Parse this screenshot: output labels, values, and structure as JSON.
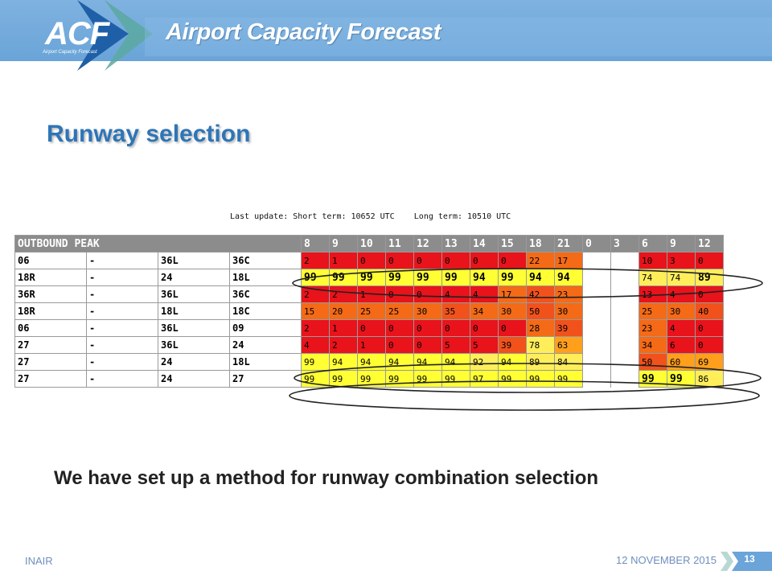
{
  "header": {
    "logo_text": "ACF",
    "logo_subtitle": "Airport Capacity Forecast",
    "title": "Airport Capacity Forecast"
  },
  "slide": {
    "title": "Runway selection",
    "last_update": "Last update: Short term: 10652 UTC    Long term: 10510 UTC",
    "statement": "We have set up a method for runway combination selection"
  },
  "table": {
    "header_label": "OUTBOUND PEAK",
    "hours": [
      "8",
      "9",
      "10",
      "11",
      "12",
      "13",
      "14",
      "15",
      "18",
      "21",
      "0",
      "3",
      "6",
      "9",
      "12"
    ],
    "rows": [
      {
        "c1": "06",
        "c2": "-",
        "c3": "36L",
        "c4": "36C",
        "values": [
          "2",
          "1",
          "0",
          "0",
          "0",
          "0",
          "0",
          "0",
          "22",
          "17",
          "",
          "",
          "10",
          "3",
          "0"
        ]
      },
      {
        "c1": "18R",
        "c2": "-",
        "c3": "24",
        "c4": "18L",
        "values": [
          "99",
          "99",
          "99",
          "99",
          "99",
          "99",
          "94",
          "99",
          "94",
          "94",
          "",
          "",
          "74",
          "74",
          "89"
        ]
      },
      {
        "c1": "36R",
        "c2": "-",
        "c3": "36L",
        "c4": "36C",
        "values": [
          "2",
          "2",
          "1",
          "0",
          "0",
          "4",
          "4",
          "17",
          "42",
          "23",
          "",
          "",
          "13",
          "4",
          "0"
        ]
      },
      {
        "c1": "18R",
        "c2": "-",
        "c3": "18L",
        "c4": "18C",
        "values": [
          "15",
          "20",
          "25",
          "25",
          "30",
          "35",
          "34",
          "30",
          "50",
          "30",
          "",
          "",
          "25",
          "30",
          "40"
        ]
      },
      {
        "c1": "06",
        "c2": "-",
        "c3": "36L",
        "c4": "09",
        "values": [
          "2",
          "1",
          "0",
          "0",
          "0",
          "0",
          "0",
          "0",
          "28",
          "39",
          "",
          "",
          "23",
          "4",
          "0"
        ]
      },
      {
        "c1": "27",
        "c2": "-",
        "c3": "36L",
        "c4": "24",
        "values": [
          "4",
          "2",
          "1",
          "0",
          "0",
          "5",
          "5",
          "39",
          "78",
          "63",
          "",
          "",
          "34",
          "6",
          "0"
        ]
      },
      {
        "c1": "27",
        "c2": "-",
        "c3": "24",
        "c4": "18L",
        "values": [
          "99",
          "94",
          "94",
          "94",
          "94",
          "94",
          "92",
          "94",
          "89",
          "84",
          "",
          "",
          "50",
          "60",
          "69"
        ]
      },
      {
        "c1": "27",
        "c2": "-",
        "c3": "24",
        "c4": "27",
        "values": [
          "99",
          "99",
          "99",
          "99",
          "99",
          "99",
          "97",
          "99",
          "99",
          "99",
          "",
          "",
          "99",
          "99",
          "86"
        ]
      }
    ]
  },
  "footer": {
    "left": "INAIR",
    "date": "12 NOVEMBER 2015",
    "page": "13"
  },
  "colors": {
    "header_blue": "#6aa4d8",
    "title_blue": "#2e75b6",
    "cell_red": "#e8131b",
    "cell_orange": "#f46a17",
    "cell_dark_orange": "#f1521b",
    "cell_amber": "#ff9f1c",
    "cell_yellow": "#ffff33",
    "cell_light_yellow": "#ffee5a"
  }
}
